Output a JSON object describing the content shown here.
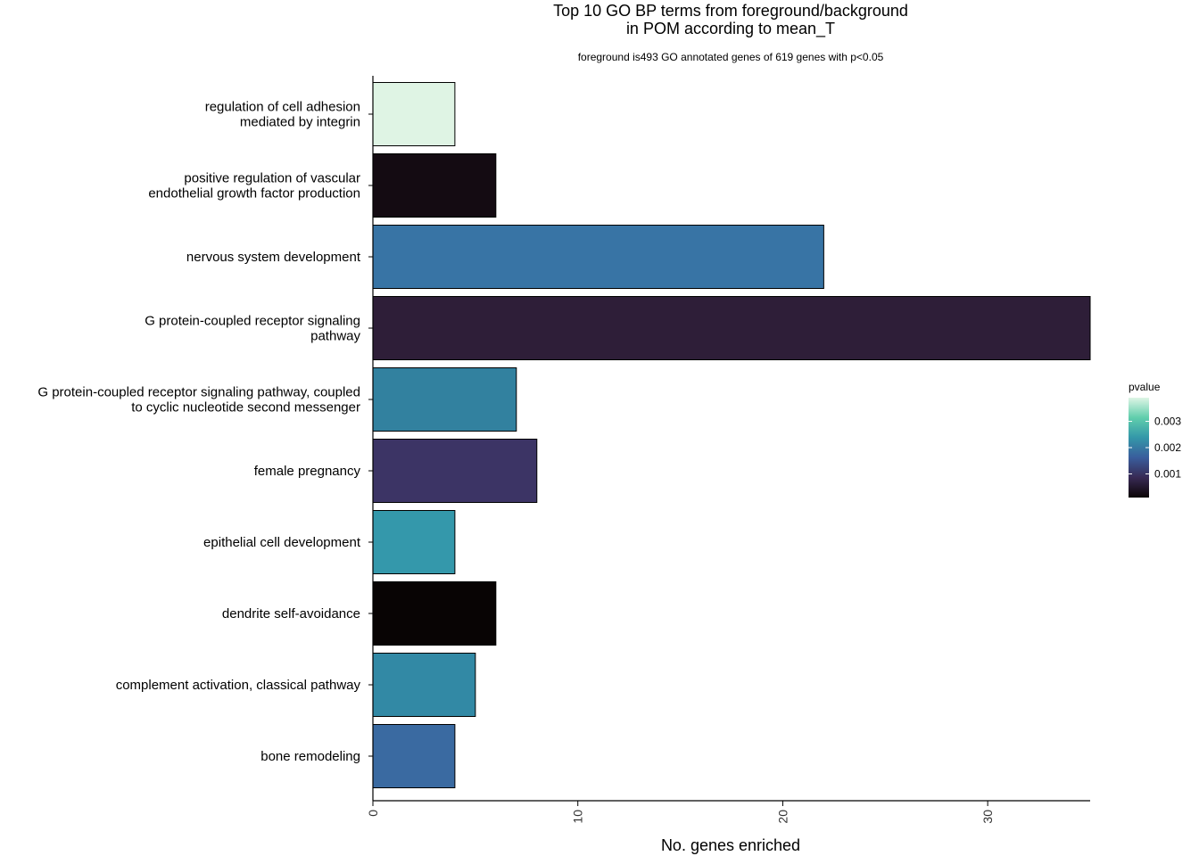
{
  "chart_data": {
    "type": "bar",
    "orientation": "horizontal",
    "title_lines": [
      "Top 10 GO BP terms from foreground/background",
      "in POM according to mean_T"
    ],
    "subtitle": "foreground is493 GO annotated genes of 619 genes with p<0.05",
    "xlabel": "No. genes enriched",
    "ylabel": "",
    "xlim": [
      0,
      35
    ],
    "xticks": [
      0,
      10,
      20,
      30
    ],
    "grid": false,
    "categories": [
      [
        "regulation of cell adhesion",
        "mediated by integrin"
      ],
      [
        "positive regulation of vascular",
        "endothelial growth factor production"
      ],
      [
        "nervous system development"
      ],
      [
        "G protein-coupled receptor signaling",
        "pathway"
      ],
      [
        "G protein-coupled receptor signaling pathway, coupled",
        "to cyclic nucleotide second messenger"
      ],
      [
        "female pregnancy"
      ],
      [
        "epithelial cell development"
      ],
      [
        "dendrite self-avoidance"
      ],
      [
        "complement activation, classical pathway"
      ],
      [
        "bone remodeling"
      ]
    ],
    "values": [
      4,
      6,
      22,
      35,
      7,
      8,
      4,
      6,
      5,
      4
    ],
    "bar_colors": [
      "#dff4e4",
      "#140b12",
      "#3874a5",
      "#2e1e38",
      "#32819f",
      "#3c3465",
      "#3498ab",
      "#080404",
      "#3289a5",
      "#3a6aa1"
    ],
    "legend": {
      "title": "pvalue",
      "placement": "right",
      "ticks": [
        "0.003",
        "0.002",
        "0.001"
      ],
      "tick_values": [
        0.003,
        0.002,
        0.001
      ],
      "range": [
        0.0001,
        0.0039
      ],
      "gradient": [
        "#0b0405",
        "#382a54",
        "#395d9c",
        "#3497a9",
        "#60ceac",
        "#def5e5"
      ]
    }
  }
}
